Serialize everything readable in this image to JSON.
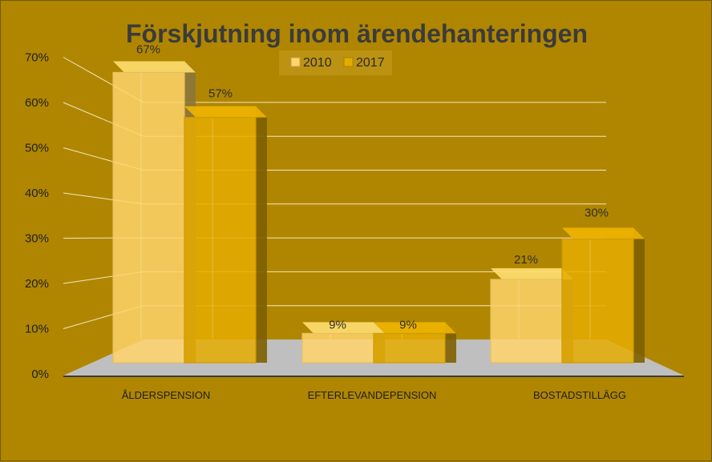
{
  "chart_data": {
    "type": "bar",
    "title": "Förskjutning inom ärendehanteringen",
    "categories": [
      "ÅLDERSPENSION",
      "EFTERLEVANDEPENSION",
      "BOSTADSTILLÄGG"
    ],
    "series": [
      {
        "name": "2010",
        "values": [
          67,
          9,
          21
        ],
        "labels": [
          "67%",
          "9%",
          "21%"
        ],
        "color": "#FFD46B"
      },
      {
        "name": "2017",
        "values": [
          57,
          9,
          30
        ],
        "labels": [
          "57%",
          "9%",
          "30%"
        ],
        "color": "#E5AC00"
      }
    ],
    "y_ticks": [
      "0%",
      "10%",
      "20%",
      "30%",
      "40%",
      "50%",
      "60%",
      "70%"
    ],
    "ylim": [
      0,
      70
    ],
    "grid": true,
    "legend_position": "top-center",
    "style": "3d-column",
    "colors": {
      "background": "#B08600",
      "floor": "#BFBFBF",
      "gridline": "#F2E6C0"
    }
  }
}
